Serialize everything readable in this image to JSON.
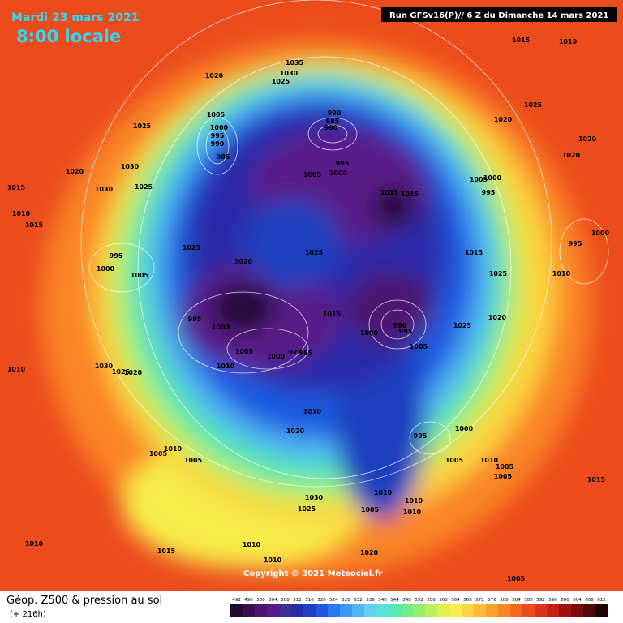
{
  "header": {
    "date": "Mardi 23 mars 2021",
    "time": "8:00 locale",
    "run": "Run GFSv16(P)// 6 Z du Dimanche 14 mars 2021"
  },
  "footer": {
    "title": "Géop. Z500 & pression au sol",
    "lead": "(+ 216h)",
    "copyright": "Copyright © 2021 Meteociel.fr"
  },
  "legend": {
    "values": [
      492,
      496,
      500,
      504,
      508,
      512,
      516,
      520,
      524,
      528,
      532,
      536,
      540,
      544,
      548,
      552,
      556,
      560,
      564,
      568,
      572,
      576,
      580,
      584,
      588,
      592,
      596,
      600,
      604,
      608,
      612
    ],
    "colors": [
      "#200a30",
      "#3a0c50",
      "#4e1470",
      "#5a1a88",
      "#3c2a96",
      "#2a2aa8",
      "#1e40c0",
      "#1e5ae0",
      "#2878f0",
      "#3c96f4",
      "#50b4f4",
      "#64d0f0",
      "#5ce0d8",
      "#58e8b0",
      "#70ec88",
      "#96ee68",
      "#bcf05a",
      "#e0f050",
      "#f8ec48",
      "#fcd440",
      "#fcbc38",
      "#fca030",
      "#fa8428",
      "#f46820",
      "#ec4c1c",
      "#dc3418",
      "#c42014",
      "#a01010",
      "#780c0c",
      "#500808",
      "#200404"
    ]
  },
  "pressure_labels": [
    1015,
    1010,
    1035,
    1030,
    1025,
    1020,
    1025,
    1020,
    990,
    985,
    980,
    1005,
    1000,
    995,
    990,
    985,
    1025,
    1020,
    1020,
    995,
    1000,
    1005,
    1030,
    1030,
    1025,
    1020,
    1015,
    1010,
    1015,
    1015,
    1015,
    1005,
    1000,
    995,
    1025,
    1025,
    1020,
    1015,
    995,
    1000,
    1005,
    1000,
    995,
    1010,
    1025,
    995,
    1000,
    1015,
    1000,
    990,
    995,
    1025,
    1020,
    1005,
    1005,
    1000,
    975,
    985,
    1010,
    1030,
    1025,
    1020,
    1010,
    1010,
    1020,
    1000,
    995,
    1010,
    1005,
    1005,
    1005,
    1010,
    1005,
    1005,
    1030,
    1025,
    1010,
    1010,
    1005,
    1010,
    1015,
    1010,
    1015,
    1010,
    1020,
    1010,
    1005
  ]
}
